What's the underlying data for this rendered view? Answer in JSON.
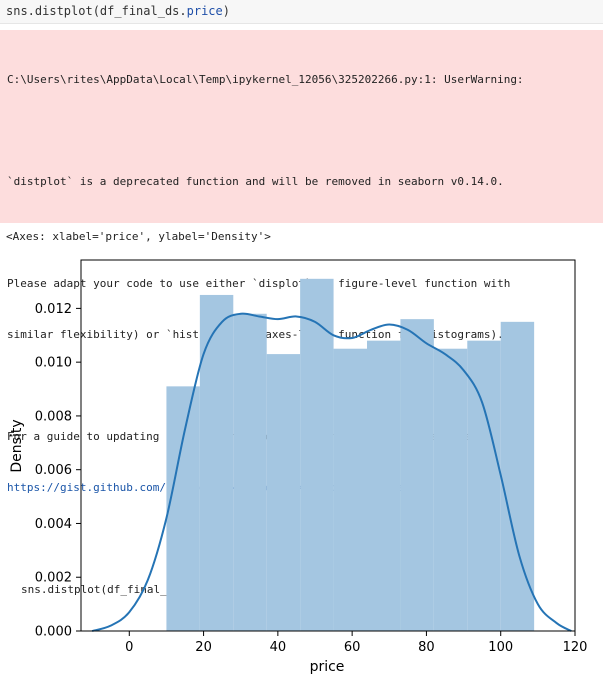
{
  "code": {
    "prefix": "sns.",
    "function": "distplot",
    "args_open": "(df_final_ds.",
    "attr": "price",
    "args_close": ")"
  },
  "warning": {
    "line1": "C:\\Users\\rites\\AppData\\Local\\Temp\\ipykernel_12056\\325202266.py:1: UserWarning:",
    "line2": "`distplot` is a deprecated function and will be removed in seaborn v0.14.0.",
    "line3": "Please adapt your code to use either `displot` (a figure-level function with",
    "line4": "similar flexibility) or `histplot` (an axes-level function for histograms).",
    "line5": "For a guide to updating your code to use the new functions, please see",
    "link": "https://gist.github.com/mwaskom/de44147ed2974457ad6372750bbe5751",
    "source_line": "sns.distplot(df_final_ds.price)"
  },
  "output_repr": "<Axes: xlabel='price', ylabel='Density'>",
  "chart_data": {
    "type": "bar",
    "title": "",
    "xlabel": "price",
    "ylabel": "Density",
    "xlim": [
      -13,
      120
    ],
    "ylim": [
      0,
      0.0138
    ],
    "xticks": [
      0,
      20,
      40,
      60,
      80,
      100,
      120
    ],
    "xtick_labels": [
      "0",
      "20",
      "40",
      "60",
      "80",
      "100",
      "120"
    ],
    "yticks": [
      0,
      0.002,
      0.004,
      0.006,
      0.008,
      0.01,
      0.012
    ],
    "ytick_labels": [
      "0.000",
      "0.002",
      "0.004",
      "0.006",
      "0.008",
      "0.010",
      "0.012"
    ],
    "bar_color": "#a4c6e1",
    "kde_color": "#2574b5",
    "bins": [
      {
        "x0": 10,
        "x1": 19,
        "value": 0.0091
      },
      {
        "x0": 19,
        "x1": 28,
        "value": 0.0125
      },
      {
        "x0": 28,
        "x1": 37,
        "value": 0.0118
      },
      {
        "x0": 37,
        "x1": 46,
        "value": 0.0103
      },
      {
        "x0": 46,
        "x1": 55,
        "value": 0.0131
      },
      {
        "x0": 55,
        "x1": 64,
        "value": 0.0105
      },
      {
        "x0": 64,
        "x1": 73,
        "value": 0.0108
      },
      {
        "x0": 73,
        "x1": 82,
        "value": 0.0116
      },
      {
        "x0": 82,
        "x1": 91,
        "value": 0.0105
      },
      {
        "x0": 91,
        "x1": 100,
        "value": 0.0108
      },
      {
        "x0": 100,
        "x1": 109,
        "value": 0.0115
      }
    ],
    "kde": {
      "x": [
        -10,
        -5,
        0,
        5,
        10,
        15,
        20,
        25,
        30,
        35,
        40,
        45,
        50,
        55,
        60,
        65,
        70,
        75,
        80,
        85,
        90,
        95,
        100,
        105,
        110,
        115,
        119
      ],
      "y": [
        0.0,
        0.0002,
        0.0007,
        0.0019,
        0.0042,
        0.0075,
        0.0103,
        0.0115,
        0.0118,
        0.0117,
        0.0116,
        0.0117,
        0.0115,
        0.011,
        0.0109,
        0.0112,
        0.0114,
        0.0112,
        0.0107,
        0.0103,
        0.0097,
        0.0085,
        0.0058,
        0.0028,
        0.001,
        0.0003,
        0.0
      ]
    }
  }
}
